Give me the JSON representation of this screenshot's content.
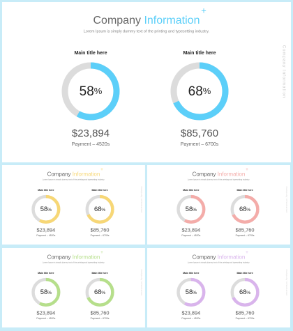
{
  "slides": [
    {
      "title_main": "Company",
      "title_accent": "Information",
      "subtitle": "Lorem Ipsum is simply dummy text of the printing and typesetting industry.",
      "side_text": "Company Information",
      "accent_color": "#5ccff9",
      "items": [
        {
          "title": "Main title here",
          "percent": 58,
          "unit": "%",
          "amount": "$23,894",
          "payment": "Payment – 4520s"
        },
        {
          "title": "Main title here",
          "percent": 68,
          "unit": "%",
          "amount": "$85,760",
          "payment": "Payment – 6700s"
        }
      ]
    },
    {
      "title_main": "Company",
      "title_accent": "Information",
      "subtitle": "Lorem Ipsum is simply dummy text of the printing and typesetting industry.",
      "side_text": "Company Information",
      "accent_color": "#f7d776",
      "items": [
        {
          "title": "Main title here",
          "percent": 58,
          "unit": "%",
          "amount": "$23,894",
          "payment": "Payment – 4520s"
        },
        {
          "title": "Main title here",
          "percent": 68,
          "unit": "%",
          "amount": "$85,760",
          "payment": "Payment – 6700s"
        }
      ]
    },
    {
      "title_main": "Company",
      "title_accent": "Information",
      "subtitle": "Lorem Ipsum is simply dummy text of the printing and typesetting industry.",
      "side_text": "Company Information",
      "accent_color": "#f4aca9",
      "items": [
        {
          "title": "Main title here",
          "percent": 58,
          "unit": "%",
          "amount": "$23,894",
          "payment": "Payment – 4520s"
        },
        {
          "title": "Main title here",
          "percent": 68,
          "unit": "%",
          "amount": "$85,760",
          "payment": "Payment – 6700s"
        }
      ]
    },
    {
      "title_main": "Company",
      "title_accent": "Information",
      "subtitle": "Lorem Ipsum is simply dummy text of the printing and typesetting industry.",
      "side_text": "Company Information",
      "accent_color": "#b6df8b",
      "items": [
        {
          "title": "Main title here",
          "percent": 58,
          "unit": "%",
          "amount": "$23,894",
          "payment": "Payment – 4520s"
        },
        {
          "title": "Main title here",
          "percent": 68,
          "unit": "%",
          "amount": "$85,760",
          "payment": "Payment – 6700s"
        }
      ]
    },
    {
      "title_main": "Company",
      "title_accent": "Information",
      "subtitle": "Lorem Ipsum is simply dummy text of the printing and typesetting industry.",
      "side_text": "Company Information",
      "accent_color": "#d9b4ec",
      "items": [
        {
          "title": "Main title here",
          "percent": 58,
          "unit": "%",
          "amount": "$23,894",
          "payment": "Payment – 4520s"
        },
        {
          "title": "Main title here",
          "percent": 68,
          "unit": "%",
          "amount": "$85,760",
          "payment": "Payment – 6700s"
        }
      ]
    }
  ]
}
